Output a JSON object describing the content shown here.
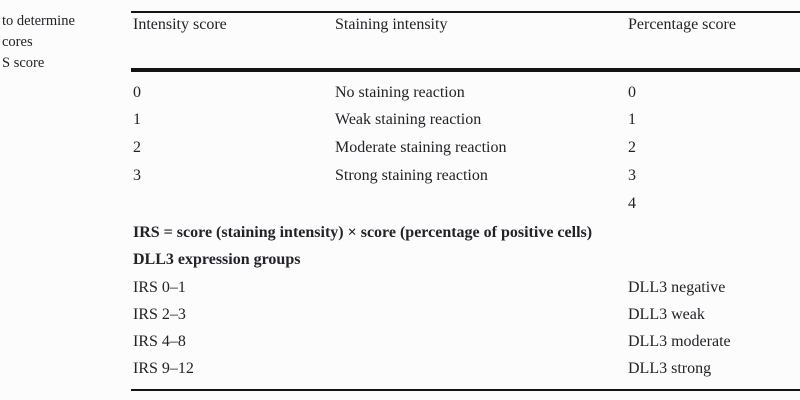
{
  "caption": {
    "lines": [
      "to determine",
      "cores",
      "S score"
    ]
  },
  "table": {
    "headers": [
      "Intensity score",
      "Staining intensity",
      "Percentage score"
    ],
    "rows": [
      {
        "intensity_score": "0",
        "staining_intensity": "No staining reaction",
        "percentage_score": "0"
      },
      {
        "intensity_score": "1",
        "staining_intensity": "Weak staining reaction",
        "percentage_score": "1"
      },
      {
        "intensity_score": "2",
        "staining_intensity": "Moderate staining reaction",
        "percentage_score": "2"
      },
      {
        "intensity_score": "3",
        "staining_intensity": "Strong staining reaction",
        "percentage_score": "3"
      },
      {
        "intensity_score": "",
        "staining_intensity": "",
        "percentage_score": "4"
      }
    ],
    "formula": "IRS = score (staining intensity) × score (percentage of positive cells)",
    "groups_heading": "DLL3 expression groups",
    "groups": [
      {
        "irs_range": "IRS 0–1",
        "label": "DLL3 negative"
      },
      {
        "irs_range": "IRS 2–3",
        "label": "DLL3 weak"
      },
      {
        "irs_range": "IRS 4–8",
        "label": "DLL3 moderate"
      },
      {
        "irs_range": "IRS 9–12",
        "label": "DLL3 strong"
      }
    ]
  },
  "colors": {
    "text": "#222228",
    "rule": "#141414",
    "background": "#fcfcfc"
  }
}
